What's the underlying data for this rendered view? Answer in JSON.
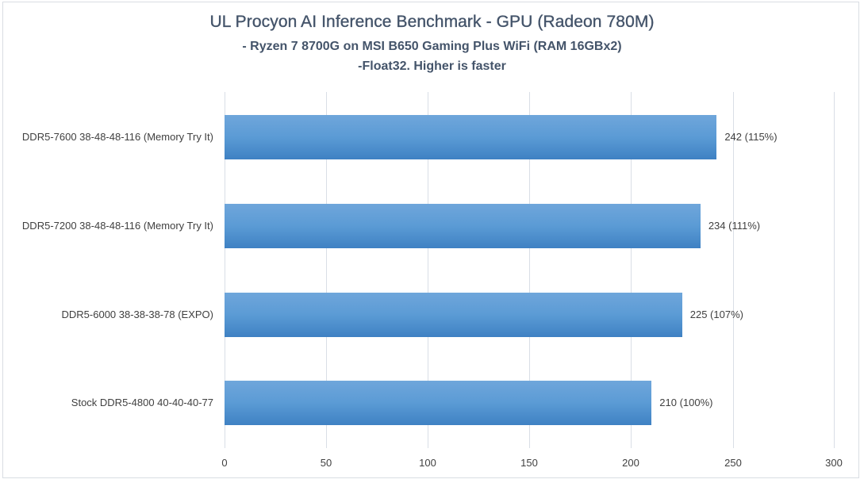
{
  "chart_data": {
    "type": "bar",
    "orientation": "horizontal",
    "title": "UL Procyon AI Inference Benchmark - GPU (Radeon 780M)",
    "subtitle": "- Ryzen 7 8700G on MSI B650 Gaming Plus WiFi (RAM 16GBx2)",
    "subtitle2": "-Float32. Higher is faster",
    "categories": [
      "DDR5-7600 38-48-48-116 (Memory Try It)",
      "DDR5-7200 38-48-48-116 (Memory Try It)",
      "DDR5-6000 38-38-38-78 (EXPO)",
      "Stock DDR5-4800 40-40-40-77"
    ],
    "values": [
      242,
      234,
      225,
      210
    ],
    "data_labels": [
      "242 (115%)",
      "234 (111%)",
      "225 (107%)",
      "210 (100%)"
    ],
    "relative_percent": [
      115,
      111,
      107,
      100
    ],
    "xlabel": "",
    "ylabel": "",
    "xlim": [
      0,
      300
    ],
    "x_ticks": [
      "0",
      "50",
      "100",
      "150",
      "200",
      "250",
      "300"
    ],
    "grid": true,
    "legend": null,
    "bar_color": "#5b9bd5"
  },
  "colors": {
    "bar_top": "#6fa6db",
    "bar_bottom": "#3f81c3",
    "gridline": "#d9dee6",
    "title_text": "#44546a",
    "label_text": "#404040"
  }
}
